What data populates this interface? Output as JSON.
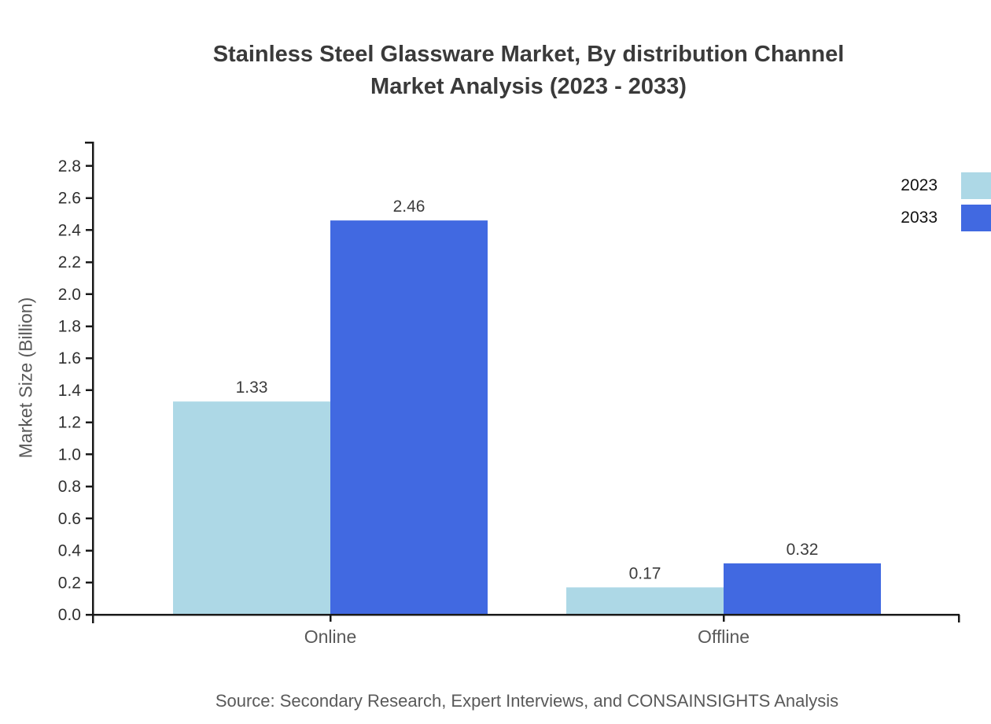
{
  "header": {
    "title_line1": "Stainless Steel Glassware Market, By distribution Channel",
    "title_line2": "Market Analysis (2023 - 2033)"
  },
  "chart_data": {
    "type": "bar",
    "title": "Stainless Steel Glassware Market, By distribution Channel Market Analysis (2023 - 2033)",
    "categories": [
      "Online",
      "Offline"
    ],
    "series": [
      {
        "name": "2023",
        "color": "#ADD8E6",
        "values": [
          1.33,
          0.17
        ]
      },
      {
        "name": "2033",
        "color": "#4169E1",
        "values": [
          2.46,
          0.32
        ]
      }
    ],
    "value_labels": [
      [
        "1.33",
        "0.17"
      ],
      [
        "2.46",
        "0.32"
      ]
    ],
    "xlabel": "",
    "ylabel": "Market Size (Billion)",
    "ylim": [
      0,
      2.9
    ],
    "ytick_labels": [
      "0.0",
      "0.2",
      "0.4",
      "0.6",
      "0.8",
      "1.0",
      "1.2",
      "1.4",
      "1.6",
      "1.8",
      "2.0",
      "2.2",
      "2.4",
      "2.6",
      "2.8"
    ],
    "grid": false,
    "legend_position": "top-right"
  },
  "footer": {
    "source": "Source: Secondary Research, Expert Interviews, and CONSAINSIGHTS Analysis"
  },
  "colors": {
    "axis": "#1a1a1a",
    "tick_label": "#303030",
    "value_label": "#3c3c3c",
    "category_label": "#595959",
    "title": "#3a3a3a",
    "source": "#595959",
    "legend_text": "#111111",
    "series_2023": "#ADD8E6",
    "series_2033": "#4169E1"
  }
}
